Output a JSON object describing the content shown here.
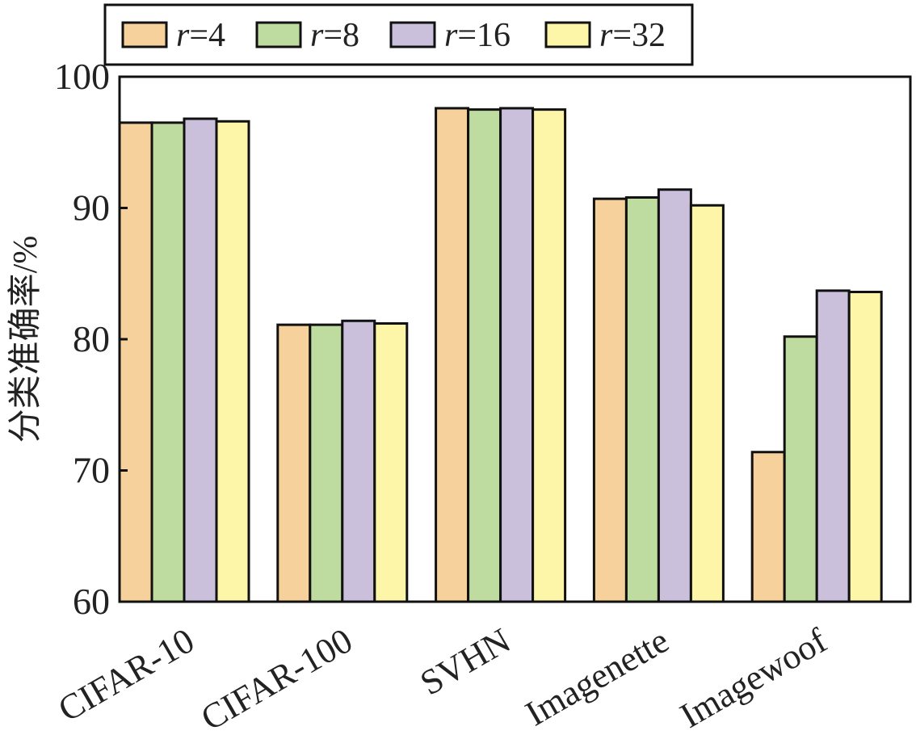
{
  "chart_data": {
    "type": "bar",
    "title": "",
    "xlabel": "",
    "ylabel": "分类准确率/%",
    "ylim": [
      60,
      100
    ],
    "yticks": [
      60,
      70,
      80,
      90,
      100
    ],
    "grid": false,
    "legend_position": "top",
    "categories": [
      "CIFAR-10",
      "CIFAR-100",
      "SVHN",
      "Imagenette",
      "Imagewoof"
    ],
    "series": [
      {
        "name": "r=4",
        "label_var": "r",
        "label_val": "=4",
        "color": "#F7D19B",
        "values": [
          96.5,
          81.1,
          97.6,
          90.7,
          71.4
        ]
      },
      {
        "name": "r=8",
        "label_var": "r",
        "label_val": "=8",
        "color": "#BFDCA0",
        "values": [
          96.5,
          81.1,
          97.5,
          90.8,
          80.2
        ]
      },
      {
        "name": "r=16",
        "label_var": "r",
        "label_val": "=16",
        "color": "#CAC0DB",
        "values": [
          96.8,
          81.4,
          97.6,
          91.4,
          83.7
        ]
      },
      {
        "name": "r=32",
        "label_var": "r",
        "label_val": "=32",
        "color": "#FDF5A7",
        "values": [
          96.6,
          81.2,
          97.5,
          90.2,
          83.6
        ]
      }
    ]
  }
}
